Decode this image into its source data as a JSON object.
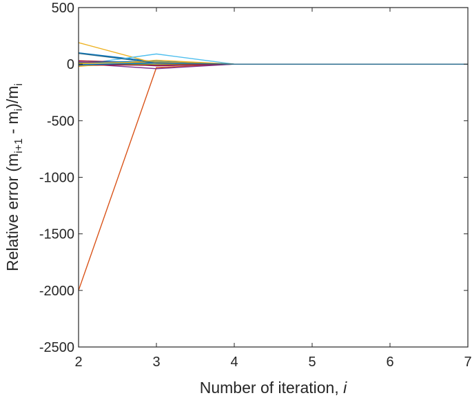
{
  "chart_data": {
    "type": "line",
    "title": "",
    "xlabel_prefix": "Number of iteration, ",
    "xlabel_var": "i",
    "ylabel_parts": [
      "Relative error (m",
      "i+1",
      " - m",
      "i",
      ")/m",
      "i"
    ],
    "xlim": [
      2,
      7
    ],
    "ylim": [
      -2500,
      500
    ],
    "xticks": [
      "2",
      "3",
      "4",
      "5",
      "6",
      "7"
    ],
    "yticks": [
      "500",
      "0",
      "-500",
      "-1000",
      "-1500",
      "-2000",
      "-2500"
    ],
    "grid": false,
    "legend": "none",
    "x": [
      2,
      3,
      4,
      5,
      6,
      7
    ],
    "series": [
      {
        "color": "#0072BD",
        "values": [
          100,
          20,
          0,
          0,
          0,
          0
        ]
      },
      {
        "color": "#D95319",
        "values": [
          -2000,
          -30,
          0,
          0,
          0,
          0
        ]
      },
      {
        "color": "#EDB120",
        "values": [
          190,
          5,
          0,
          0,
          0,
          0
        ]
      },
      {
        "color": "#7E2F8E",
        "values": [
          5,
          -40,
          0,
          0,
          0,
          0
        ]
      },
      {
        "color": "#77AC30",
        "values": [
          -10,
          15,
          0,
          0,
          0,
          0
        ]
      },
      {
        "color": "#4DBEEE",
        "values": [
          -5,
          90,
          0,
          0,
          0,
          0
        ]
      },
      {
        "color": "#A2142F",
        "values": [
          30,
          10,
          0,
          0,
          0,
          0
        ]
      },
      {
        "color": "#0072BD",
        "values": [
          15,
          25,
          0,
          0,
          0,
          0
        ]
      },
      {
        "color": "#D95319",
        "values": [
          -15,
          5,
          0,
          0,
          0,
          0
        ]
      },
      {
        "color": "#EDB120",
        "values": [
          -20,
          35,
          0,
          0,
          0,
          0
        ]
      },
      {
        "color": "#7E2F8E",
        "values": [
          20,
          -15,
          0,
          0,
          0,
          0
        ]
      },
      {
        "color": "#77AC30",
        "values": [
          10,
          -5,
          0,
          0,
          0,
          0
        ]
      },
      {
        "color": "#4DBEEE",
        "values": [
          0,
          8,
          0,
          0,
          0,
          0
        ]
      },
      {
        "color": "#A2142F",
        "values": [
          -5,
          -10,
          0,
          0,
          0,
          0
        ]
      },
      {
        "color": "#EDB120",
        "values": [
          5,
          20,
          0,
          0,
          0,
          0
        ]
      },
      {
        "color": "#0072BD",
        "values": [
          -8,
          12,
          0,
          0,
          0,
          0
        ]
      },
      {
        "color": "#2E6E8E",
        "values": [
          95,
          10,
          0,
          0,
          0,
          0
        ]
      }
    ]
  }
}
